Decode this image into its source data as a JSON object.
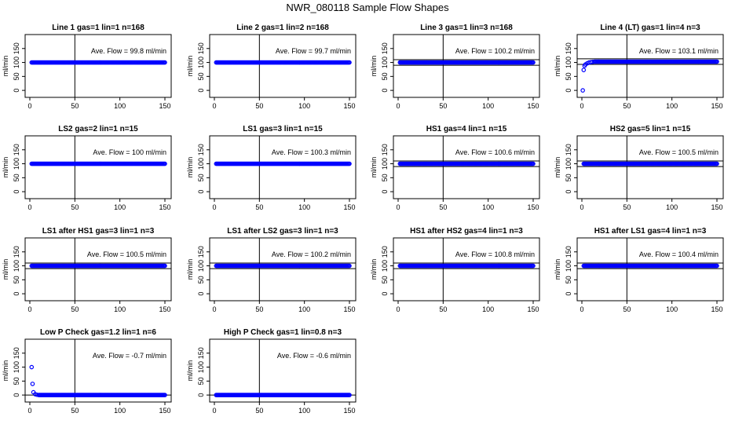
{
  "figure": {
    "title": "NWR_080118  Sample Flow Shapes"
  },
  "colors": {
    "points": "#0000ff",
    "lines": "#000000"
  },
  "chart_data": [
    {
      "type": "scatter",
      "title": "Line 1 gas=1 lin=1 n=168",
      "annotation": "Ave. Flow =  99.8  ml/min",
      "ylabel": "ml/min",
      "xlim": [
        0,
        150
      ],
      "ylim": [
        -25,
        200
      ],
      "xticks": [
        0,
        50,
        100,
        150
      ],
      "yticks": [
        0,
        50,
        100,
        150
      ],
      "vline": 50,
      "hlines": [],
      "points": [],
      "flat": {
        "y": 100,
        "x": [
          2,
          150
        ]
      }
    },
    {
      "type": "scatter",
      "title": "Line 2 gas=1 lin=2 n=168",
      "annotation": "Ave. Flow =  99.7  ml/min",
      "ylabel": "ml/min",
      "xlim": [
        0,
        150
      ],
      "ylim": [
        -25,
        200
      ],
      "xticks": [
        0,
        50,
        100,
        150
      ],
      "yticks": [
        0,
        50,
        100,
        150
      ],
      "vline": 50,
      "hlines": [],
      "points": [],
      "flat": {
        "y": 100,
        "x": [
          2,
          150
        ]
      }
    },
    {
      "type": "scatter",
      "title": "Line 3 gas=1 lin=3 n=168",
      "annotation": "Ave. Flow =  100.2  ml/min",
      "ylabel": "ml/min",
      "xlim": [
        0,
        150
      ],
      "ylim": [
        -25,
        200
      ],
      "xticks": [
        0,
        50,
        100,
        150
      ],
      "yticks": [
        0,
        50,
        100,
        150
      ],
      "vline": 50,
      "hlines": [
        110,
        90
      ],
      "points": [],
      "flat": {
        "y": 100,
        "x": [
          2,
          150
        ]
      }
    },
    {
      "type": "scatter",
      "title": "Line 4 (LT) gas=1 lin=4 n=3",
      "annotation": "Ave. Flow =  103.1  ml/min",
      "ylabel": "ml/min",
      "xlim": [
        0,
        150
      ],
      "ylim": [
        -25,
        200
      ],
      "xticks": [
        0,
        50,
        100,
        150
      ],
      "yticks": [
        0,
        50,
        100,
        150
      ],
      "vline": 50,
      "hlines": [
        113,
        93
      ],
      "points": [
        [
          1,
          0
        ],
        [
          2,
          73
        ],
        [
          3,
          88
        ],
        [
          4,
          93
        ],
        [
          6,
          97
        ],
        [
          8,
          100
        ],
        [
          10,
          101
        ],
        [
          12,
          102
        ]
      ],
      "flat": {
        "y": 103,
        "x": [
          14,
          150
        ]
      }
    },
    {
      "type": "scatter",
      "title": "LS2 gas=2 lin=1 n=15",
      "annotation": "Ave. Flow =  100  ml/min",
      "ylabel": "ml/min",
      "xlim": [
        0,
        150
      ],
      "ylim": [
        -25,
        200
      ],
      "xticks": [
        0,
        50,
        100,
        150
      ],
      "yticks": [
        0,
        50,
        100,
        150
      ],
      "vline": 50,
      "hlines": [],
      "points": [],
      "flat": {
        "y": 100,
        "x": [
          2,
          150
        ]
      }
    },
    {
      "type": "scatter",
      "title": "LS1 gas=3 lin=1 n=15",
      "annotation": "Ave. Flow =  100.3  ml/min",
      "ylabel": "ml/min",
      "xlim": [
        0,
        150
      ],
      "ylim": [
        -25,
        200
      ],
      "xticks": [
        0,
        50,
        100,
        150
      ],
      "yticks": [
        0,
        50,
        100,
        150
      ],
      "vline": 50,
      "hlines": [],
      "points": [],
      "flat": {
        "y": 100,
        "x": [
          2,
          150
        ]
      }
    },
    {
      "type": "scatter",
      "title": "HS1 gas=4 lin=1 n=15",
      "annotation": "Ave. Flow =  100.6  ml/min",
      "ylabel": "ml/min",
      "xlim": [
        0,
        150
      ],
      "ylim": [
        -25,
        200
      ],
      "xticks": [
        0,
        50,
        100,
        150
      ],
      "yticks": [
        0,
        50,
        100,
        150
      ],
      "vline": 50,
      "hlines": [
        110,
        90
      ],
      "points": [],
      "flat": {
        "y": 100,
        "x": [
          2,
          150
        ]
      }
    },
    {
      "type": "scatter",
      "title": "HS2 gas=5 lin=1 n=15",
      "annotation": "Ave. Flow =  100.5  ml/min",
      "ylabel": "ml/min",
      "xlim": [
        0,
        150
      ],
      "ylim": [
        -25,
        200
      ],
      "xticks": [
        0,
        50,
        100,
        150
      ],
      "yticks": [
        0,
        50,
        100,
        150
      ],
      "vline": 50,
      "hlines": [
        110,
        90
      ],
      "points": [],
      "flat": {
        "y": 100,
        "x": [
          2,
          150
        ]
      }
    },
    {
      "type": "scatter",
      "title": "LS1 after HS1 gas=3 lin=1 n=3",
      "annotation": "Ave. Flow =  100.5  ml/min",
      "ylabel": "ml/min",
      "xlim": [
        0,
        150
      ],
      "ylim": [
        -25,
        200
      ],
      "xticks": [
        0,
        50,
        100,
        150
      ],
      "yticks": [
        0,
        50,
        100,
        150
      ],
      "vline": 50,
      "hlines": [
        110,
        90
      ],
      "points": [],
      "flat": {
        "y": 100,
        "x": [
          2,
          150
        ]
      }
    },
    {
      "type": "scatter",
      "title": "LS1 after LS2 gas=3 lin=1 n=3",
      "annotation": "Ave. Flow =  100.2  ml/min",
      "ylabel": "ml/min",
      "xlim": [
        0,
        150
      ],
      "ylim": [
        -25,
        200
      ],
      "xticks": [
        0,
        50,
        100,
        150
      ],
      "yticks": [
        0,
        50,
        100,
        150
      ],
      "vline": 50,
      "hlines": [
        110,
        90
      ],
      "points": [],
      "flat": {
        "y": 100,
        "x": [
          2,
          150
        ]
      }
    },
    {
      "type": "scatter",
      "title": "HS1 after HS2 gas=4 lin=1 n=3",
      "annotation": "Ave. Flow =  100.8  ml/min",
      "ylabel": "ml/min",
      "xlim": [
        0,
        150
      ],
      "ylim": [
        -25,
        200
      ],
      "xticks": [
        0,
        50,
        100,
        150
      ],
      "yticks": [
        0,
        50,
        100,
        150
      ],
      "vline": 50,
      "hlines": [
        110,
        90
      ],
      "points": [],
      "flat": {
        "y": 100,
        "x": [
          2,
          150
        ]
      }
    },
    {
      "type": "scatter",
      "title": "HS1 after LS1 gas=4 lin=1 n=3",
      "annotation": "Ave. Flow =  100.4  ml/min",
      "ylabel": "ml/min",
      "xlim": [
        0,
        150
      ],
      "ylim": [
        -25,
        200
      ],
      "xticks": [
        0,
        50,
        100,
        150
      ],
      "yticks": [
        0,
        50,
        100,
        150
      ],
      "vline": 50,
      "hlines": [
        110,
        90
      ],
      "points": [],
      "flat": {
        "y": 100,
        "x": [
          2,
          150
        ]
      }
    },
    {
      "type": "scatter",
      "title": "Low P Check gas=1.2 lin=1 n=6",
      "annotation": "Ave. Flow =  -0.7  ml/min",
      "ylabel": "ml/min",
      "xlim": [
        0,
        150
      ],
      "ylim": [
        -25,
        200
      ],
      "xticks": [
        0,
        50,
        100,
        150
      ],
      "yticks": [
        0,
        50,
        100,
        150
      ],
      "vline": 50,
      "hlines": [
        0
      ],
      "points": [
        [
          2,
          100
        ],
        [
          3,
          40
        ],
        [
          4,
          10
        ],
        [
          6,
          3
        ],
        [
          8,
          1
        ]
      ],
      "flat": {
        "y": 0,
        "x": [
          10,
          150
        ]
      }
    },
    {
      "type": "scatter",
      "title": "High P Check gas=1 lin=0.8 n=3",
      "annotation": "Ave. Flow =  -0.6  ml/min",
      "ylabel": "ml/min",
      "xlim": [
        0,
        150
      ],
      "ylim": [
        -25,
        200
      ],
      "xticks": [
        0,
        50,
        100,
        150
      ],
      "yticks": [
        0,
        50,
        100,
        150
      ],
      "vline": 50,
      "hlines": [
        0
      ],
      "points": [],
      "flat": {
        "y": 0,
        "x": [
          2,
          150
        ]
      }
    }
  ]
}
